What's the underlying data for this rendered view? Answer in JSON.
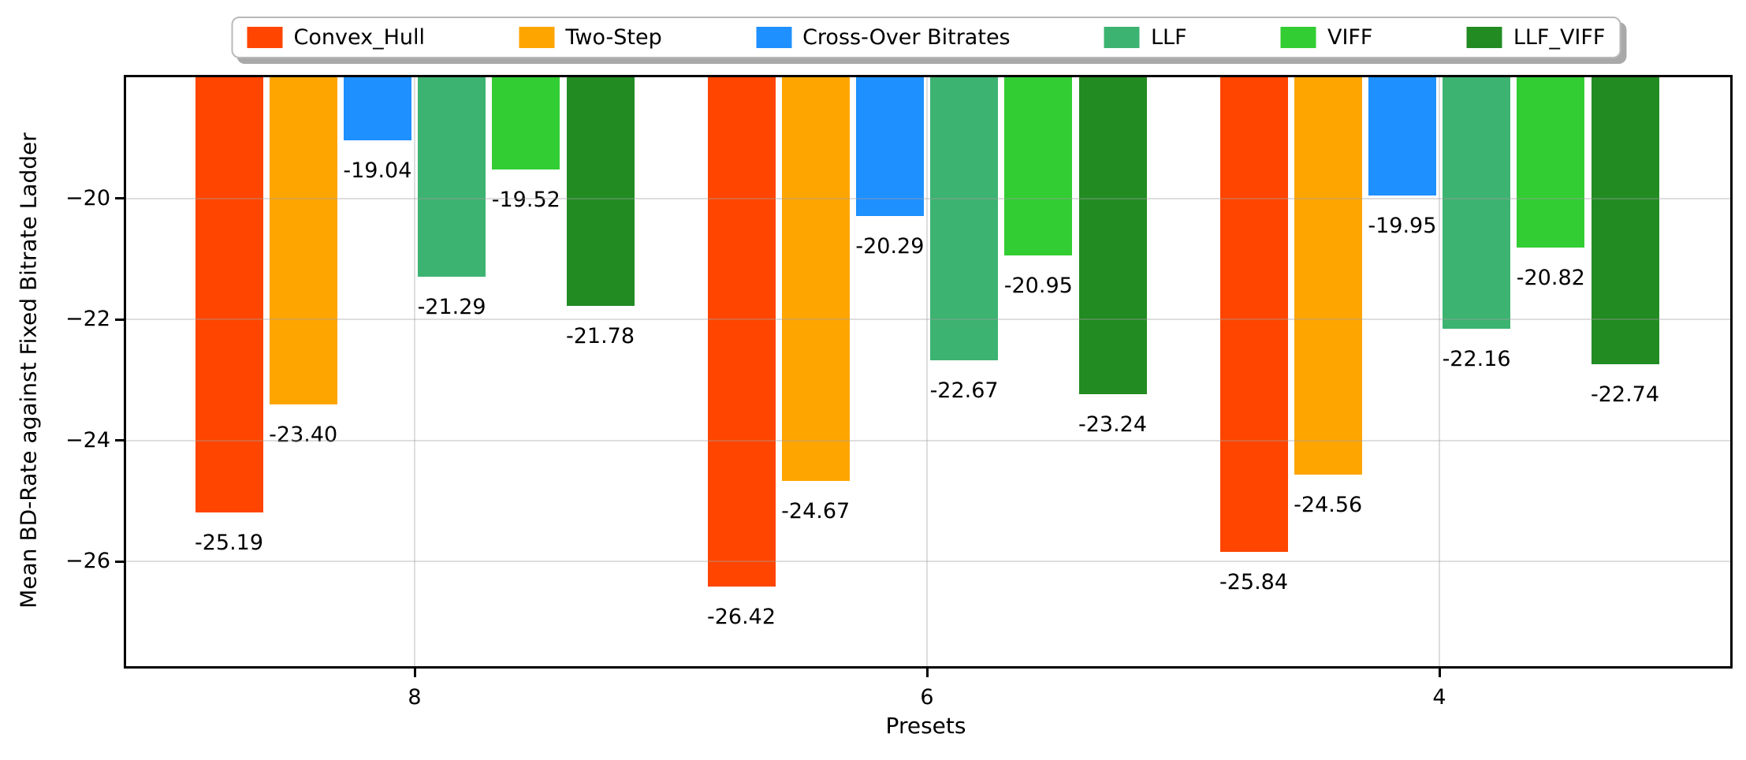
{
  "chart_data": {
    "type": "bar",
    "title": "",
    "xlabel": "Presets",
    "ylabel": "Mean BD-Rate against Fixed Bitrate Ladder",
    "categories": [
      "8",
      "6",
      "4"
    ],
    "series": [
      {
        "name": "Convex_Hull",
        "color": "#ff4500",
        "values": [
          -25.19,
          -26.42,
          -25.84
        ]
      },
      {
        "name": "Two-Step",
        "color": "#ffa500",
        "values": [
          -23.4,
          -24.67,
          -24.56
        ]
      },
      {
        "name": "Cross-Over Bitrates",
        "color": "#1e90ff",
        "values": [
          -19.04,
          -20.29,
          -19.95
        ]
      },
      {
        "name": "LLF",
        "color": "#3cb371",
        "values": [
          -21.29,
          -22.67,
          -22.16
        ]
      },
      {
        "name": "VIFF",
        "color": "#32cd32",
        "values": [
          -19.52,
          -20.95,
          -20.82
        ]
      },
      {
        "name": "LLF_VIFF",
        "color": "#228b22",
        "values": [
          -21.78,
          -23.24,
          -22.74
        ]
      }
    ],
    "value_label_decimals": 2,
    "ylim": [
      -27.73,
      -18.0
    ],
    "yticks": [
      -20,
      -22,
      -24,
      -26
    ],
    "ytick_labels": [
      "−20",
      "−22",
      "−24",
      "−26"
    ],
    "grid": true,
    "grid_above_bars": true,
    "legend_position": "top-center",
    "bars_anchored_to_top": true
  }
}
